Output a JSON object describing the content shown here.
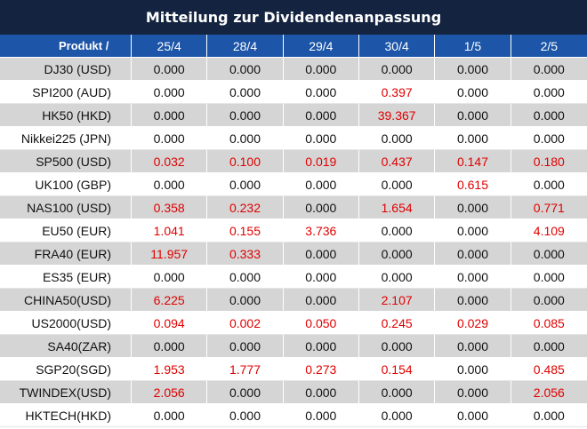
{
  "title": "Mitteilung zur Dividendenanpassung",
  "header": {
    "product_label": "Produkt /",
    "dates": [
      "25/4",
      "28/4",
      "29/4",
      "30/4",
      "1/5",
      "2/5"
    ]
  },
  "colors": {
    "title_bg": "#14233f",
    "header_bg": "#1d56a8",
    "stripe_bg": "#d5d5d5",
    "highlight_text": "#e00000"
  },
  "rows": [
    {
      "product": "DJ30 (USD)",
      "values": [
        "0.000",
        "0.000",
        "0.000",
        "0.000",
        "0.000",
        "0.000"
      ]
    },
    {
      "product": "SPI200 (AUD)",
      "values": [
        "0.000",
        "0.000",
        "0.000",
        "0.397",
        "0.000",
        "0.000"
      ]
    },
    {
      "product": "HK50 (HKD)",
      "values": [
        "0.000",
        "0.000",
        "0.000",
        "39.367",
        "0.000",
        "0.000"
      ]
    },
    {
      "product": "Nikkei225 (JPN)",
      "values": [
        "0.000",
        "0.000",
        "0.000",
        "0.000",
        "0.000",
        "0.000"
      ]
    },
    {
      "product": "SP500 (USD)",
      "values": [
        "0.032",
        "0.100",
        "0.019",
        "0.437",
        "0.147",
        "0.180"
      ]
    },
    {
      "product": "UK100 (GBP)",
      "values": [
        "0.000",
        "0.000",
        "0.000",
        "0.000",
        "0.615",
        "0.000"
      ]
    },
    {
      "product": "NAS100 (USD)",
      "values": [
        "0.358",
        "0.232",
        "0.000",
        "1.654",
        "0.000",
        "0.771"
      ]
    },
    {
      "product": "EU50 (EUR)",
      "values": [
        "1.041",
        "0.155",
        "3.736",
        "0.000",
        "0.000",
        "4.109"
      ]
    },
    {
      "product": "FRA40 (EUR)",
      "values": [
        "11.957",
        "0.333",
        "0.000",
        "0.000",
        "0.000",
        "0.000"
      ]
    },
    {
      "product": "ES35 (EUR)",
      "values": [
        "0.000",
        "0.000",
        "0.000",
        "0.000",
        "0.000",
        "0.000"
      ]
    },
    {
      "product": "CHINA50(USD)",
      "values": [
        "6.225",
        "0.000",
        "0.000",
        "2.107",
        "0.000",
        "0.000"
      ]
    },
    {
      "product": "US2000(USD)",
      "values": [
        "0.094",
        "0.002",
        "0.050",
        "0.245",
        "0.029",
        "0.085"
      ]
    },
    {
      "product": "SA40(ZAR)",
      "values": [
        "0.000",
        "0.000",
        "0.000",
        "0.000",
        "0.000",
        "0.000"
      ]
    },
    {
      "product": "SGP20(SGD)",
      "values": [
        "1.953",
        "1.777",
        "0.273",
        "0.154",
        "0.000",
        "0.485"
      ]
    },
    {
      "product": "TWINDEX(USD)",
      "values": [
        "2.056",
        "0.000",
        "0.000",
        "0.000",
        "0.000",
        "2.056"
      ]
    },
    {
      "product": "HKTECH(HKD)",
      "values": [
        "0.000",
        "0.000",
        "0.000",
        "0.000",
        "0.000",
        "0.000"
      ]
    }
  ]
}
